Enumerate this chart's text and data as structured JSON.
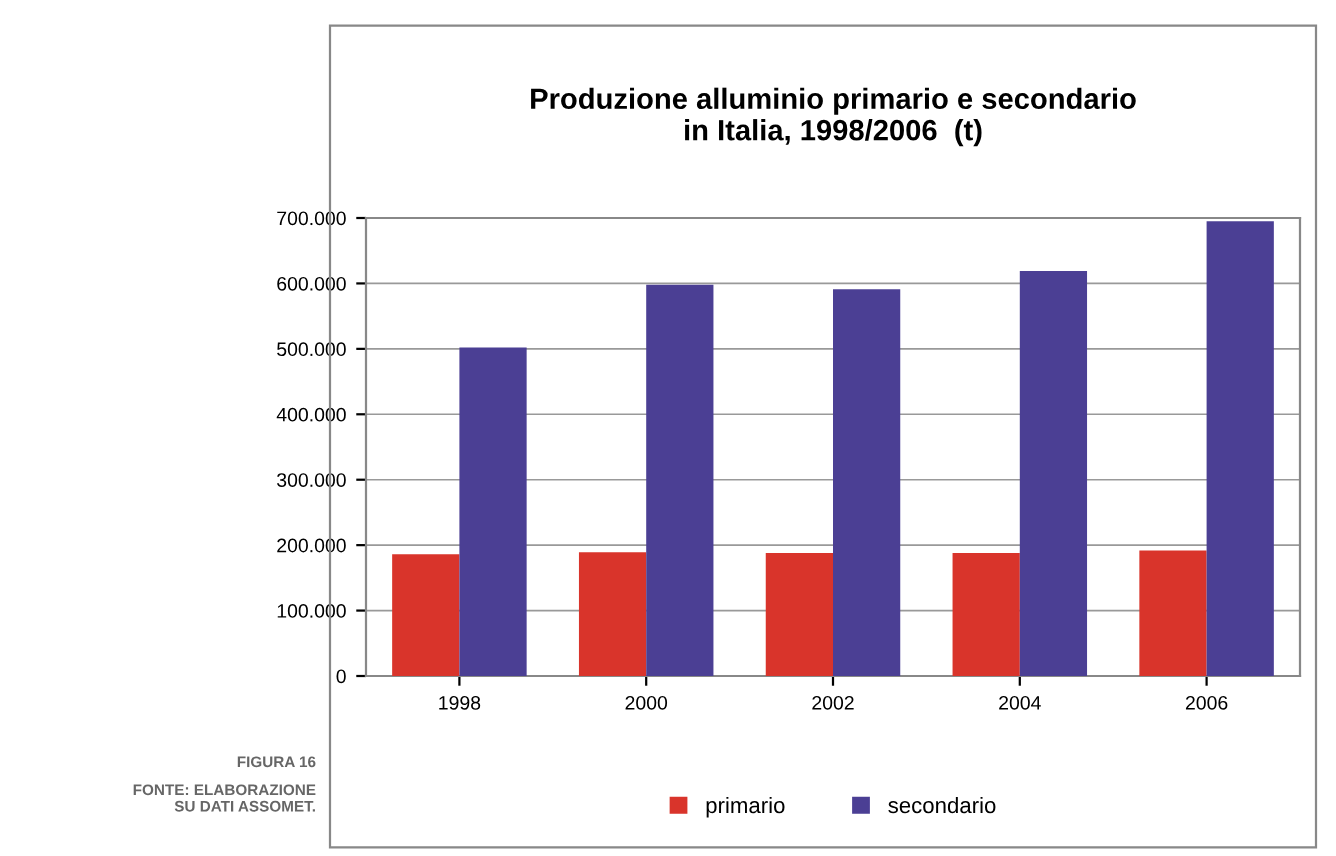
{
  "chart_data": {
    "type": "bar",
    "title": "Produzione alluminio primario e secondario\nin Italia, 1998/2006  (t)",
    "categories": [
      "1998",
      "2000",
      "2002",
      "2004",
      "2006"
    ],
    "series": [
      {
        "name": "primario",
        "color": "#d9342b",
        "values": [
          186000,
          189000,
          188000,
          188000,
          192000
        ]
      },
      {
        "name": "secondario",
        "color": "#4b3f94",
        "values": [
          502000,
          598000,
          591000,
          619000,
          695000
        ]
      }
    ],
    "ylim": [
      0,
      700000
    ],
    "yticks": [
      {
        "value": 0,
        "label": "0"
      },
      {
        "value": 100000,
        "label": "100.000"
      },
      {
        "value": 200000,
        "label": "200.000"
      },
      {
        "value": 300000,
        "label": "300.000"
      },
      {
        "value": 400000,
        "label": "400.000"
      },
      {
        "value": 500000,
        "label": "500.000"
      },
      {
        "value": 600000,
        "label": "600.000"
      },
      {
        "value": 700000,
        "label": "700.000"
      }
    ],
    "grid": "y",
    "legend": "bottom",
    "annotations": [
      "FIGURA 16",
      "FONTE: ELABORAZIONE\nSU DATI ASSOMET."
    ]
  }
}
